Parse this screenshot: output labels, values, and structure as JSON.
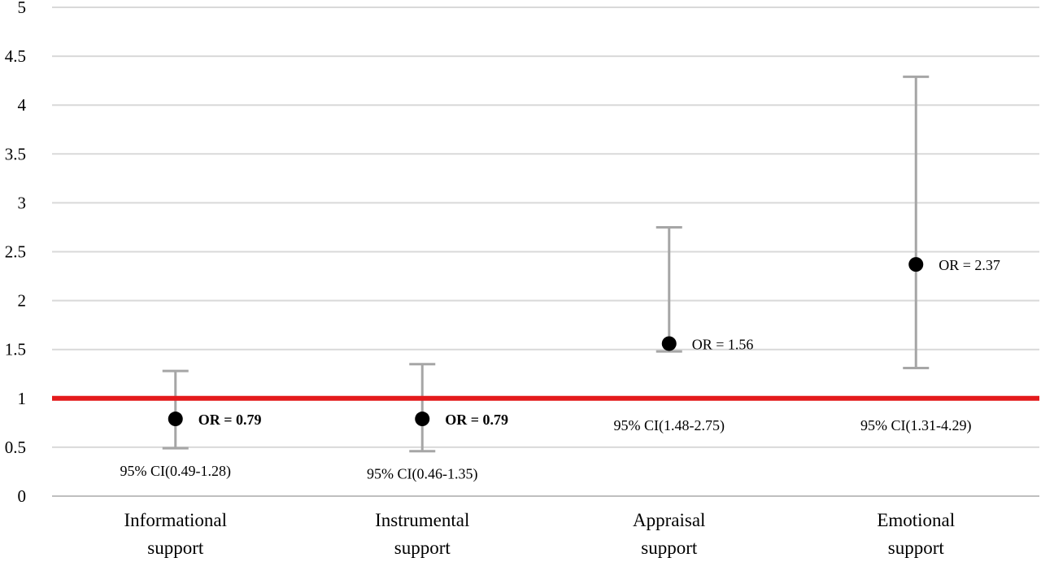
{
  "chart_data": {
    "type": "scatter",
    "title": "",
    "xlabel": "",
    "ylabel": "",
    "ylim": [
      0,
      5
    ],
    "yticks": [
      "0",
      "0.5",
      "1",
      "1.5",
      "2",
      "2.5",
      "3",
      "3.5",
      "4",
      "4.5",
      "5"
    ],
    "grid": true,
    "legend": "none",
    "reference_line": {
      "y": 1,
      "color": "#e41a1c"
    },
    "categories": [
      [
        "Informational",
        "support"
      ],
      [
        "Instrumental",
        "support"
      ],
      [
        "Appraisal",
        "support"
      ],
      [
        "Emotional",
        "support"
      ]
    ],
    "points": [
      {
        "or": 0.79,
        "ci_low": 0.49,
        "ci_high": 1.28,
        "or_label": "OR = 0.79",
        "ci_label": "95% CI(0.49-1.28)",
        "or_bold": true,
        "ci_below": true
      },
      {
        "or": 0.79,
        "ci_low": 0.46,
        "ci_high": 1.35,
        "or_label": "OR = 0.79",
        "ci_label": "95% CI(0.46-1.35)",
        "or_bold": true,
        "ci_below": true
      },
      {
        "or": 1.56,
        "ci_low": 1.48,
        "ci_high": 2.75,
        "or_label": "OR = 1.56",
        "ci_label": "95% CI(1.48-2.75)",
        "or_bold": false,
        "ci_below": false
      },
      {
        "or": 2.37,
        "ci_low": 1.31,
        "ci_high": 4.29,
        "or_label": "OR = 2.37",
        "ci_label": "95% CI(1.31-4.29)",
        "or_bold": false,
        "ci_below": false
      }
    ],
    "colors": {
      "grid": "#d9d9d9",
      "axis": "#bfbfbf",
      "error_bar": "#a6a6a6",
      "marker": "#000000",
      "reference": "#e41a1c"
    }
  }
}
